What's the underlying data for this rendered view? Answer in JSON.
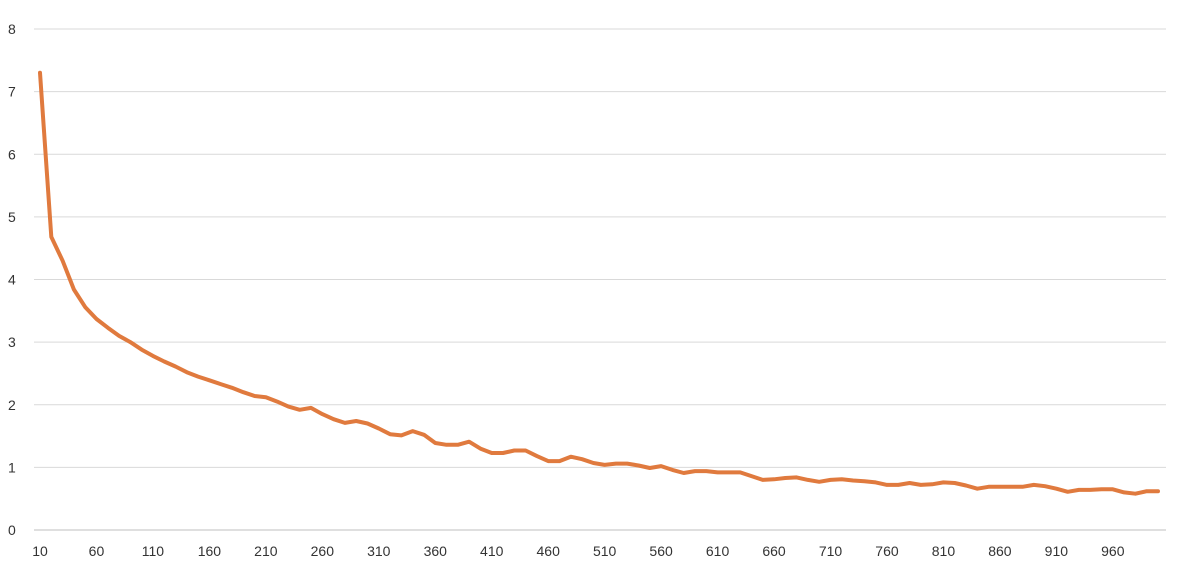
{
  "chart_data": {
    "type": "line",
    "title": "",
    "xlabel": "",
    "ylabel": "",
    "ylim": [
      0,
      8
    ],
    "yticks": [
      0,
      1,
      2,
      3,
      4,
      5,
      6,
      7,
      8
    ],
    "xlim": [
      10,
      1000
    ],
    "xticks": [
      10,
      60,
      110,
      160,
      210,
      260,
      310,
      360,
      410,
      460,
      510,
      560,
      610,
      660,
      710,
      760,
      810,
      860,
      910,
      960
    ],
    "grid": true,
    "legend": "none",
    "series_color": "#e07a3e",
    "grid_color": "#d9d9d9",
    "series": [
      {
        "x": [
          10,
          20,
          30,
          40,
          50,
          60,
          70,
          80,
          90,
          100,
          110,
          120,
          130,
          140,
          150,
          160,
          170,
          180,
          190,
          200,
          210,
          220,
          230,
          240,
          250,
          260,
          270,
          280,
          290,
          300,
          310,
          320,
          330,
          340,
          350,
          360,
          370,
          380,
          390,
          400,
          410,
          420,
          430,
          440,
          450,
          460,
          470,
          480,
          490,
          500,
          510,
          520,
          530,
          540,
          550,
          560,
          570,
          580,
          590,
          600,
          610,
          620,
          630,
          640,
          650,
          660,
          670,
          680,
          690,
          700,
          710,
          720,
          730,
          740,
          750,
          760,
          770,
          780,
          790,
          800,
          810,
          820,
          830,
          840,
          850,
          860,
          870,
          880,
          890,
          900,
          910,
          920,
          930,
          940,
          950,
          960,
          970,
          980,
          990,
          1000
        ],
        "values": [
          7.3,
          4.68,
          4.3,
          3.84,
          3.56,
          3.37,
          3.23,
          3.1,
          3.0,
          2.88,
          2.78,
          2.69,
          2.61,
          2.52,
          2.45,
          2.39,
          2.33,
          2.27,
          2.2,
          2.14,
          2.12,
          2.05,
          1.97,
          1.92,
          1.95,
          1.85,
          1.77,
          1.71,
          1.74,
          1.7,
          1.62,
          1.53,
          1.51,
          1.58,
          1.52,
          1.39,
          1.36,
          1.36,
          1.41,
          1.3,
          1.23,
          1.23,
          1.27,
          1.27,
          1.18,
          1.1,
          1.1,
          1.17,
          1.13,
          1.07,
          1.04,
          1.06,
          1.06,
          1.03,
          0.99,
          1.02,
          0.96,
          0.91,
          0.94,
          0.94,
          0.92,
          0.92,
          0.92,
          0.86,
          0.8,
          0.81,
          0.83,
          0.84,
          0.8,
          0.77,
          0.8,
          0.81,
          0.79,
          0.78,
          0.76,
          0.72,
          0.72,
          0.75,
          0.72,
          0.73,
          0.76,
          0.75,
          0.71,
          0.66,
          0.69,
          0.69,
          0.69,
          0.69,
          0.72,
          0.7,
          0.66,
          0.61,
          0.64,
          0.64,
          0.65,
          0.65,
          0.6,
          0.58,
          0.62,
          0.62
        ]
      }
    ]
  }
}
